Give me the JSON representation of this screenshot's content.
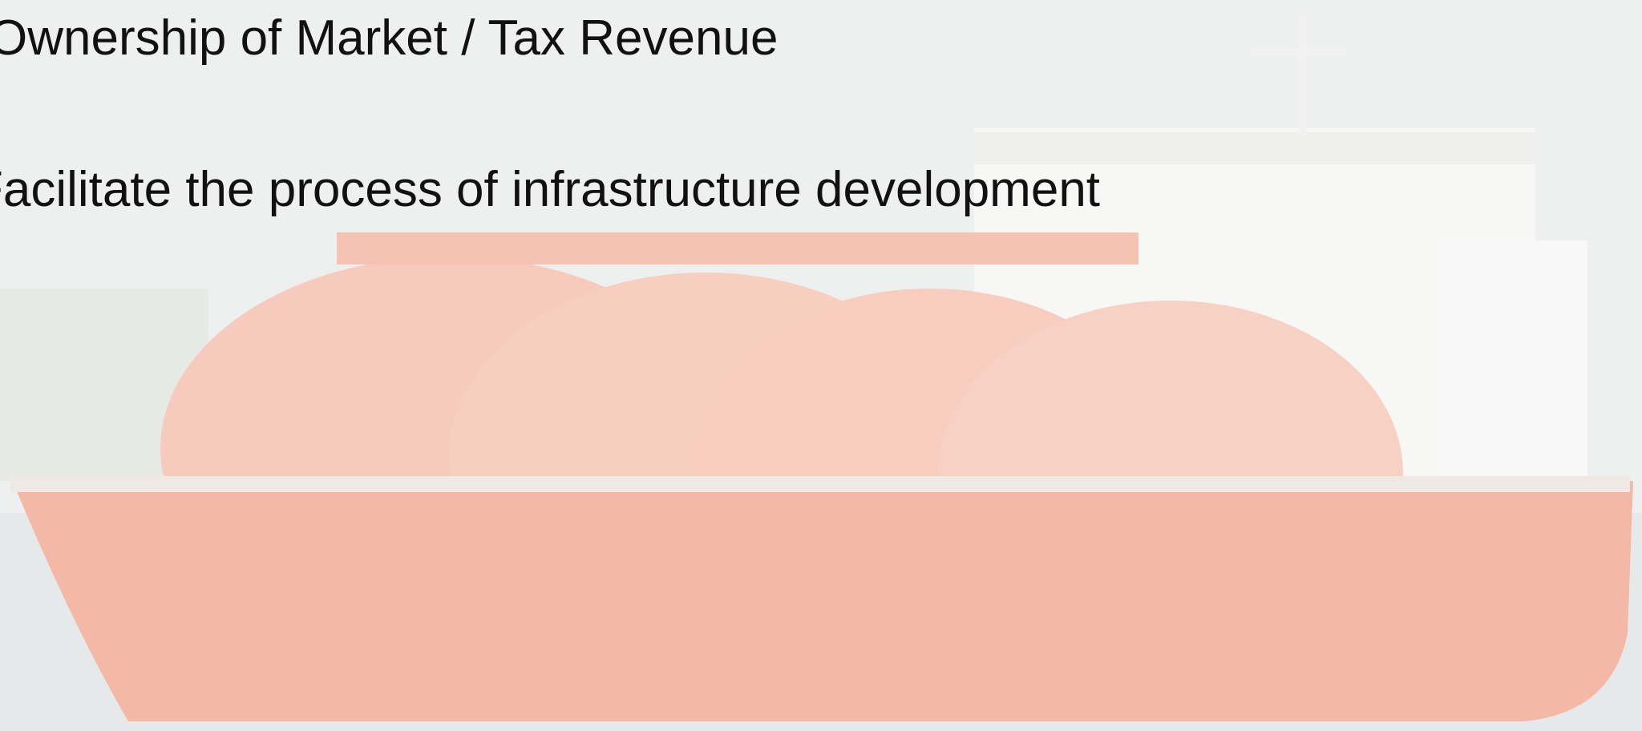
{
  "slide": {
    "lines": [
      "Ownership of Market / Tax Revenue",
      "Facilitate the process of infrastructure development"
    ]
  }
}
